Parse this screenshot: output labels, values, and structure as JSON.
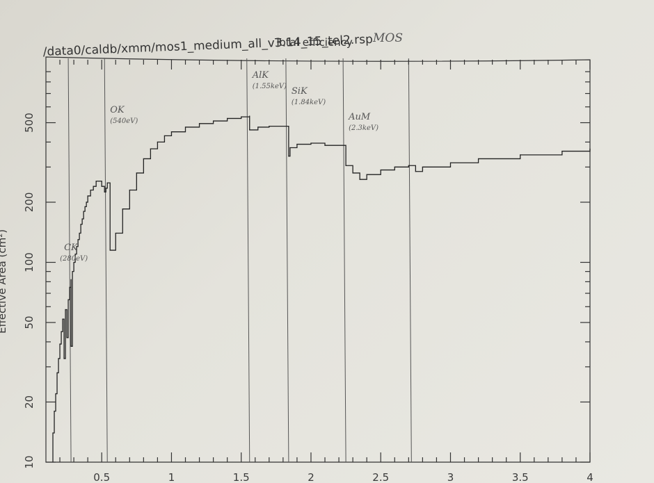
{
  "chart_data": {
    "type": "line",
    "title": "Total efficiency",
    "title_note": "MOS",
    "subtitle": "/data0/caldb/xmm/mos1_medium_all_v3.14_15_tel2.rsp",
    "ylabel": "Effective Area (cm²)",
    "xlabel": "",
    "xlim": [
      0.1,
      4
    ],
    "ylim": [
      10,
      1000
    ],
    "yscale": "log",
    "grid": false,
    "x_ticks": [
      "0.5",
      "1",
      "1.5",
      "2",
      "2.5",
      "3",
      "3.5",
      "4"
    ],
    "x_tick_values": [
      0.5,
      1,
      1.5,
      2,
      2.5,
      3,
      3.5,
      4
    ],
    "y_ticks": [
      "10",
      "20",
      "50",
      "100",
      "200",
      "500"
    ],
    "y_tick_values": [
      10,
      20,
      50,
      100,
      200,
      500
    ],
    "edges": [
      {
        "x": 0.28,
        "label": "CK",
        "sublabel": "(280eV)"
      },
      {
        "x": 0.54,
        "label": "OK",
        "sublabel": "(540eV)"
      },
      {
        "x": 1.56,
        "label": "AlK",
        "sublabel": "(1.55keV)"
      },
      {
        "x": 1.84,
        "label": "SiK",
        "sublabel": "(1.84keV)"
      },
      {
        "x": 2.25,
        "label": "AuM",
        "sublabel": "(2.3keV)"
      },
      {
        "x": 2.72,
        "label": "",
        "sublabel": ""
      }
    ],
    "series": [
      {
        "x": [
          0.15,
          0.15,
          0.16,
          0.17,
          0.18,
          0.19,
          0.2,
          0.21,
          0.22,
          0.23,
          0.24,
          0.25,
          0.26,
          0.27,
          0.28,
          0.28,
          0.29,
          0.3,
          0.31,
          0.32,
          0.33,
          0.34,
          0.35,
          0.36,
          0.37,
          0.38,
          0.39,
          0.4,
          0.42,
          0.44,
          0.46,
          0.48,
          0.5,
          0.52,
          0.53,
          0.54,
          0.56,
          0.6,
          0.65,
          0.7,
          0.75,
          0.8,
          0.85,
          0.9,
          0.95,
          1.0,
          1.1,
          1.2,
          1.3,
          1.4,
          1.5,
          1.56,
          1.56,
          1.62,
          1.7,
          1.84,
          1.84,
          1.85,
          1.9,
          2.0,
          2.1,
          2.25,
          2.25,
          2.3,
          2.35,
          2.4,
          2.5,
          2.6,
          2.7,
          2.75,
          2.8,
          3.0,
          3.2,
          3.5,
          3.8,
          4.0
        ],
        "y": [
          10,
          14,
          18,
          22,
          28,
          33,
          39,
          45,
          52,
          33,
          58,
          42,
          65,
          75,
          82,
          38,
          90,
          100,
          110,
          120,
          130,
          140,
          155,
          165,
          180,
          190,
          200,
          215,
          230,
          240,
          255,
          255,
          240,
          225,
          235,
          250,
          115,
          140,
          185,
          230,
          280,
          330,
          370,
          400,
          430,
          450,
          475,
          495,
          510,
          525,
          535,
          540,
          460,
          475,
          480,
          475,
          340,
          375,
          390,
          395,
          385,
          370,
          305,
          280,
          260,
          275,
          290,
          300,
          305,
          285,
          300,
          315,
          330,
          345,
          360,
          370
        ]
      }
    ]
  }
}
